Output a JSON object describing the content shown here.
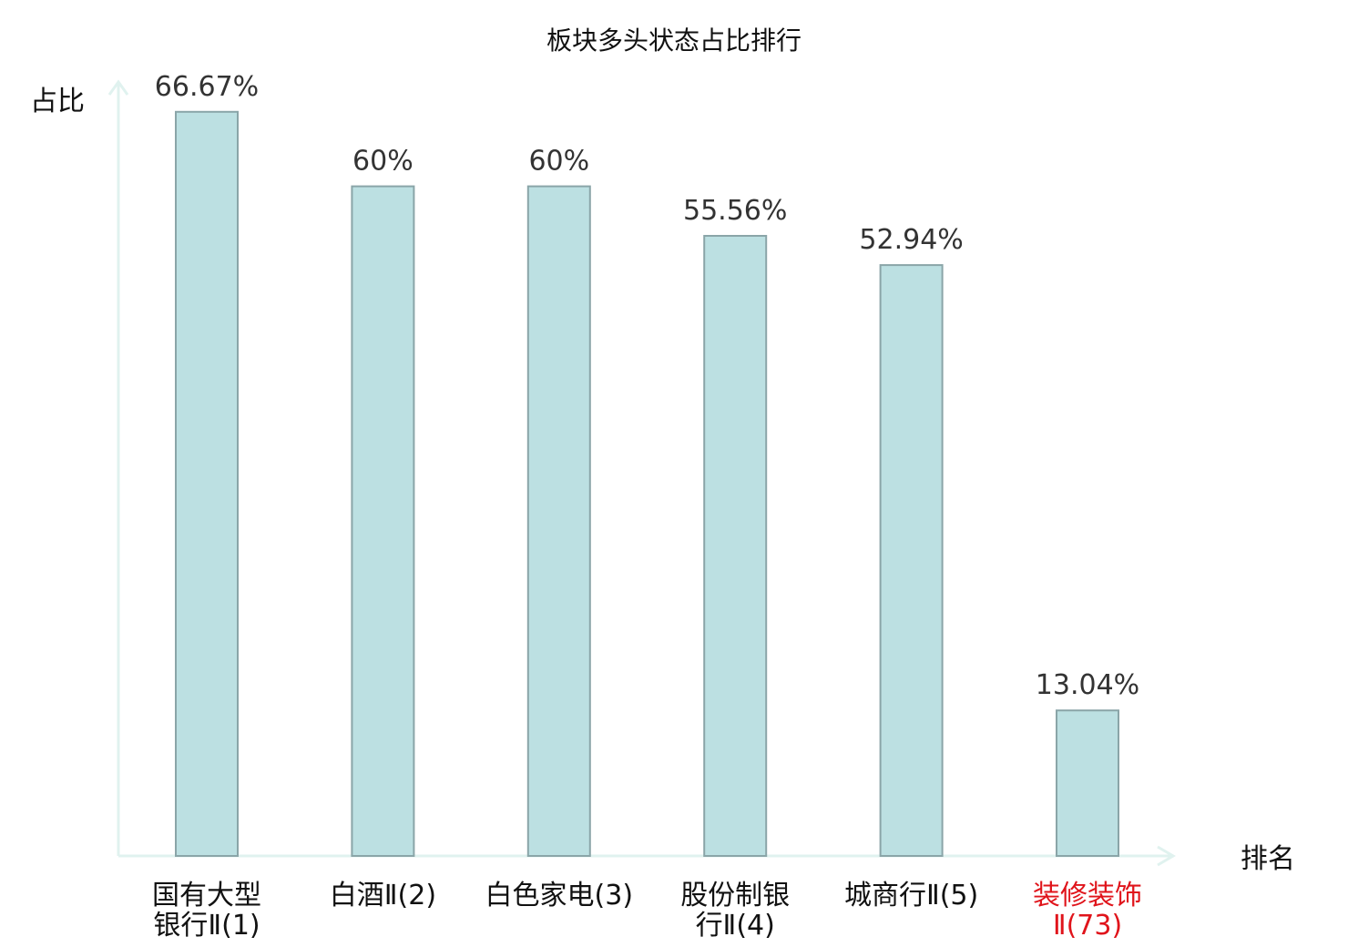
{
  "chart_data": {
    "type": "bar",
    "title": "板块多头状态占比排行",
    "xlabel": "排名",
    "ylabel": "占比",
    "categories": [
      [
        "国有大型",
        "银行Ⅱ(1)"
      ],
      [
        "白酒Ⅱ(2)"
      ],
      [
        "白色家电(3)"
      ],
      [
        "股份制银",
        "行Ⅱ(4)"
      ],
      [
        "城商行Ⅱ(5)"
      ],
      [
        "装修装饰",
        "Ⅱ(73)"
      ]
    ],
    "values": [
      66.67,
      60,
      60,
      55.56,
      52.94,
      13.04
    ],
    "value_labels": [
      "66.67%",
      "60%",
      "60%",
      "55.56%",
      "52.94%",
      "13.04%"
    ],
    "highlight_index": 5,
    "ylim": [
      0,
      70
    ],
    "grid": false,
    "colors": {
      "bar_fill": "#bce0e2",
      "bar_stroke": "#8aa5a8",
      "axis": "#e0f2ef",
      "text": "#333333",
      "highlight": "#e0141b"
    }
  }
}
